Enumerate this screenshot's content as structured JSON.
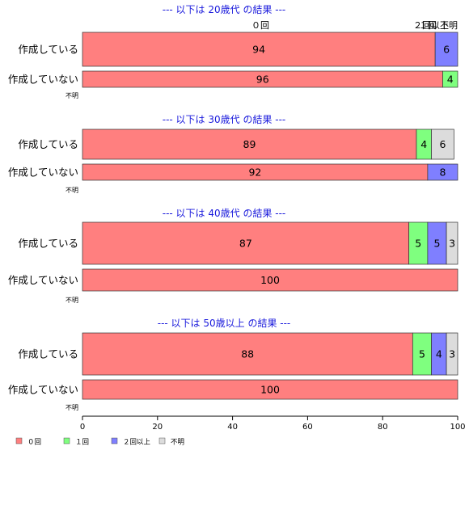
{
  "chart_data": {
    "type": "bar",
    "orientation": "horizontal",
    "stacked": true,
    "xlim": [
      0,
      100
    ],
    "xticks": [
      0,
      20,
      40,
      60,
      80,
      100
    ],
    "grid": false,
    "legend_position": "bottom-left",
    "series": [
      {
        "name": "０回",
        "color": "#ff7f7f"
      },
      {
        "name": "１回",
        "color": "#7fff7f"
      },
      {
        "name": "２回以上",
        "color": "#7f7fff"
      },
      {
        "name": "不明",
        "color": "#dcdcdc"
      }
    ],
    "panels": [
      {
        "title": "--- 以下は 20歳代 の結果 ---",
        "categories": [
          "作成している",
          "作成していない"
        ],
        "values": [
          [
            94,
            0,
            6,
            0
          ],
          [
            96,
            4,
            0,
            0
          ]
        ],
        "footnote": "不明",
        "header_labels": [
          "０回",
          "１回",
          "２回以上",
          "不明"
        ]
      },
      {
        "title": "--- 以下は 30歳代 の結果 ---",
        "categories": [
          "作成している",
          "作成していない"
        ],
        "values": [
          [
            89,
            4,
            0,
            6
          ],
          [
            92,
            0,
            8,
            0
          ]
        ],
        "footnote": "不明"
      },
      {
        "title": "--- 以下は 40歳代 の結果 ---",
        "categories": [
          "作成している",
          "作成していない"
        ],
        "values": [
          [
            87,
            5,
            5,
            3
          ],
          [
            100,
            0,
            0,
            0
          ]
        ],
        "footnote": "不明"
      },
      {
        "title": "--- 以下は 50歳以上 の結果 ---",
        "categories": [
          "作成している",
          "作成していない"
        ],
        "values": [
          [
            88,
            5,
            4,
            3
          ],
          [
            100,
            0,
            0,
            0
          ]
        ],
        "footnote": "不明"
      }
    ]
  }
}
